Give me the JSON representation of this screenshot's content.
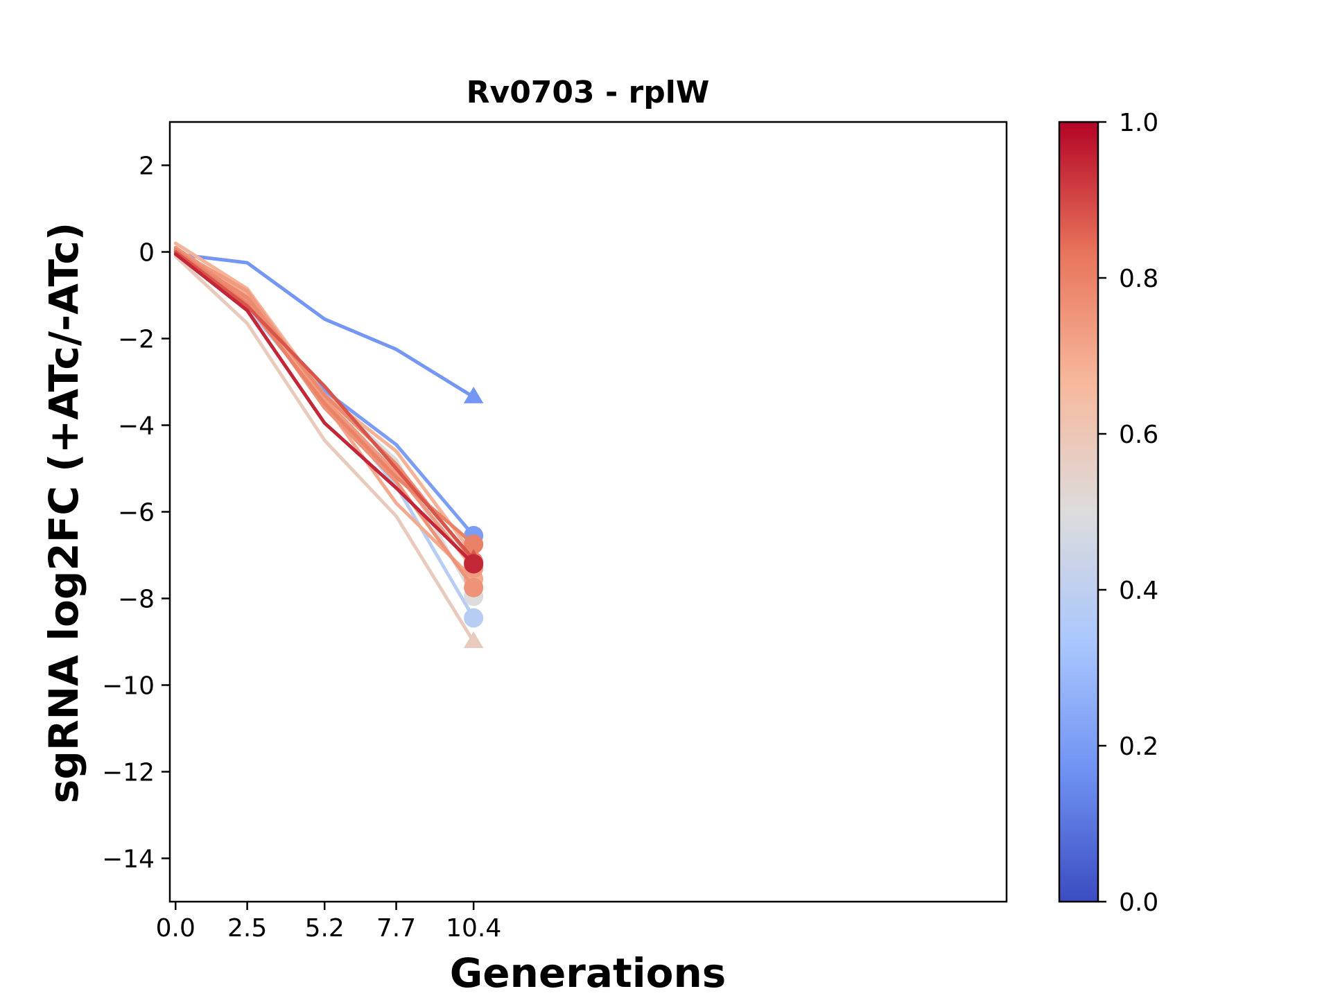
{
  "chart_data": {
    "type": "line",
    "title": "Rv0703 - rplW",
    "xlabel": "Generations",
    "ylabel": "sgRNA log2FC (+ATc/-ATc)",
    "x": [
      0.0,
      2.5,
      5.2,
      7.7,
      10.4
    ],
    "x_tick_labels": [
      "0.0",
      "2.5",
      "5.2",
      "7.7",
      "10.4"
    ],
    "xlim": [
      -0.2,
      29.0
    ],
    "ylim": [
      -15,
      3
    ],
    "y_ticks": [
      2,
      0,
      -2,
      -4,
      -6,
      -8,
      -10,
      -12,
      -14
    ],
    "y_tick_labels": [
      "2",
      "0",
      "−2",
      "−4",
      "−6",
      "−8",
      "−10",
      "−12",
      "−14"
    ],
    "grid": false,
    "colorbar": {
      "colormap": "coolwarm",
      "range": [
        0.0,
        1.0
      ],
      "ticks": [
        0.0,
        0.2,
        0.4,
        0.6,
        0.8,
        1.0
      ],
      "tick_labels": [
        "0.0",
        "0.2",
        "0.4",
        "0.6",
        "0.8",
        "1.0"
      ],
      "colors": [
        "#3b4cc0",
        "#6f92f3",
        "#aac7fd",
        "#dddcdc",
        "#f7b89c",
        "#e7745b",
        "#b40426"
      ]
    },
    "series": [
      {
        "color_value": 0.18,
        "marker": "triangle",
        "values": [
          -0.05,
          -0.25,
          -1.55,
          -2.25,
          -3.35
        ]
      },
      {
        "color_value": 0.2,
        "marker": "circle",
        "values": [
          0.0,
          -1.15,
          -3.2,
          -4.45,
          -6.55
        ]
      },
      {
        "color_value": 0.38,
        "marker": "circle",
        "values": [
          -0.05,
          -1.3,
          -3.4,
          -5.4,
          -8.45
        ]
      },
      {
        "color_value": 0.5,
        "marker": "circle",
        "values": [
          0.0,
          -1.2,
          -3.3,
          -4.8,
          -7.95
        ]
      },
      {
        "color_value": 0.58,
        "marker": "triangle",
        "values": [
          -0.1,
          -1.65,
          -4.35,
          -6.1,
          -9.0
        ]
      },
      {
        "color_value": 0.68,
        "marker": "triangle",
        "values": [
          0.2,
          -0.85,
          -3.3,
          -4.6,
          -7.0
        ]
      },
      {
        "color_value": 0.7,
        "marker": "circle",
        "values": [
          0.1,
          -1.0,
          -3.5,
          -5.8,
          -7.55
        ]
      },
      {
        "color_value": 0.74,
        "marker": "circle",
        "values": [
          0.05,
          -0.9,
          -3.4,
          -5.1,
          -7.3
        ]
      },
      {
        "color_value": 0.76,
        "marker": "circle",
        "values": [
          0.1,
          -1.1,
          -3.6,
          -5.3,
          -7.75
        ]
      },
      {
        "color_value": 0.78,
        "marker": "circle",
        "values": [
          0.0,
          -1.05,
          -3.3,
          -4.9,
          -7.15
        ]
      },
      {
        "color_value": 0.8,
        "marker": "circle",
        "values": [
          0.05,
          -1.2,
          -3.5,
          -5.2,
          -6.75
        ]
      },
      {
        "color_value": 0.88,
        "marker": "triangle",
        "values": [
          0.0,
          -1.25,
          -3.1,
          -5.0,
          -7.1
        ]
      },
      {
        "color_value": 0.95,
        "marker": "circle",
        "values": [
          -0.05,
          -1.35,
          -3.95,
          -5.45,
          -7.2
        ]
      }
    ]
  }
}
